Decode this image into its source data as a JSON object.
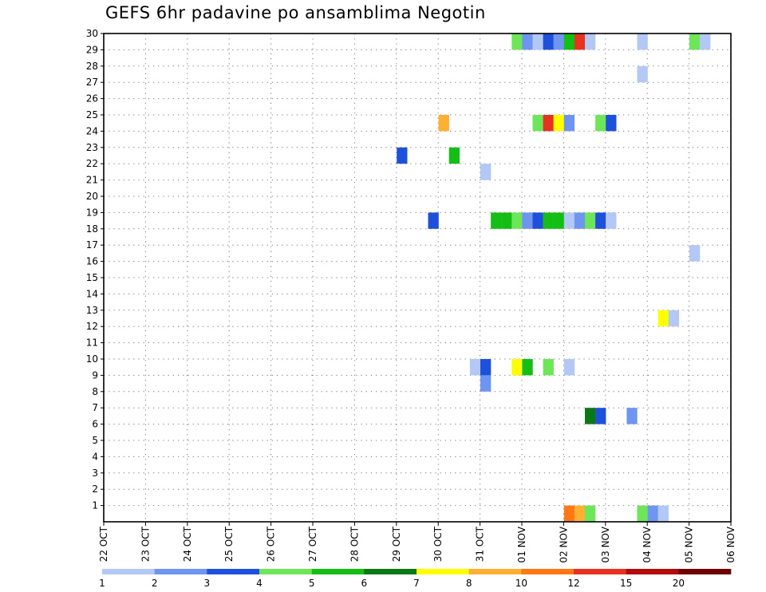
{
  "chart_data": {
    "type": "heatmap",
    "title": "GEFS 6hr padavine po ansamblima Negotin",
    "xlabel": "",
    "ylabel": "",
    "x_tick_labels": [
      "22 OCT",
      "23 OCT",
      "24 OCT",
      "25 OCT",
      "26 OCT",
      "27 OCT",
      "28 OCT",
      "29 OCT",
      "30 OCT",
      "31 OCT",
      "01 NOV",
      "02 NOV",
      "03 NOV",
      "04 NOV",
      "05 NOV",
      "06 NOV"
    ],
    "y_tick_labels": [
      "1",
      "2",
      "3",
      "4",
      "5",
      "6",
      "7",
      "8",
      "9",
      "10",
      "11",
      "12",
      "13",
      "14",
      "15",
      "16",
      "17",
      "18",
      "19",
      "20",
      "21",
      "22",
      "23",
      "24",
      "25",
      "26",
      "27",
      "28",
      "29",
      "30"
    ],
    "x_unit": "6-hour step (0 = 22 OCT 00z)",
    "xlim": [
      0,
      60
    ],
    "ylim": [
      0,
      30
    ],
    "grid": true,
    "colorbar": {
      "labels": [
        "1",
        "2",
        "3",
        "4",
        "5",
        "6",
        "7",
        "8",
        "10",
        "12",
        "15",
        "20"
      ],
      "colors": [
        "#b4c8f5",
        "#6e96f0",
        "#1e50dc",
        "#6ee65a",
        "#14be14",
        "#0a7814",
        "#ffff00",
        "#ffaf32",
        "#ff7814",
        "#e6321e",
        "#b40a0a",
        "#6e0000"
      ]
    },
    "cells": [
      {
        "x": 39,
        "y": 29,
        "c": 3
      },
      {
        "x": 40,
        "y": 29,
        "c": 1
      },
      {
        "x": 41,
        "y": 29,
        "c": 0
      },
      {
        "x": 42,
        "y": 29,
        "c": 2
      },
      {
        "x": 43,
        "y": 29,
        "c": 1
      },
      {
        "x": 44,
        "y": 29,
        "c": 4
      },
      {
        "x": 45,
        "y": 29,
        "c": 9
      },
      {
        "x": 46,
        "y": 29,
        "c": 0
      },
      {
        "x": 51,
        "y": 29,
        "c": 0
      },
      {
        "x": 56,
        "y": 29,
        "c": 3
      },
      {
        "x": 57,
        "y": 29,
        "c": 0
      },
      {
        "x": 51,
        "y": 27,
        "c": 0
      },
      {
        "x": 32,
        "y": 24,
        "c": 7
      },
      {
        "x": 41,
        "y": 24,
        "c": 3
      },
      {
        "x": 42,
        "y": 24,
        "c": 9
      },
      {
        "x": 43,
        "y": 24,
        "c": 6
      },
      {
        "x": 44,
        "y": 24,
        "c": 1
      },
      {
        "x": 47,
        "y": 24,
        "c": 3
      },
      {
        "x": 48,
        "y": 24,
        "c": 2
      },
      {
        "x": 28,
        "y": 22,
        "c": 2
      },
      {
        "x": 33,
        "y": 22,
        "c": 4
      },
      {
        "x": 36,
        "y": 21,
        "c": 0
      },
      {
        "x": 31,
        "y": 18,
        "c": 2
      },
      {
        "x": 37,
        "y": 18,
        "c": 4
      },
      {
        "x": 38,
        "y": 18,
        "c": 4
      },
      {
        "x": 39,
        "y": 18,
        "c": 3
      },
      {
        "x": 40,
        "y": 18,
        "c": 1
      },
      {
        "x": 41,
        "y": 18,
        "c": 2
      },
      {
        "x": 42,
        "y": 18,
        "c": 4
      },
      {
        "x": 43,
        "y": 18,
        "c": 4
      },
      {
        "x": 44,
        "y": 18,
        "c": 0
      },
      {
        "x": 45,
        "y": 18,
        "c": 1
      },
      {
        "x": 46,
        "y": 18,
        "c": 3
      },
      {
        "x": 47,
        "y": 18,
        "c": 2
      },
      {
        "x": 48,
        "y": 18,
        "c": 0
      },
      {
        "x": 56,
        "y": 16,
        "c": 0
      },
      {
        "x": 53,
        "y": 12,
        "c": 6
      },
      {
        "x": 54,
        "y": 12,
        "c": 0
      },
      {
        "x": 35,
        "y": 9,
        "c": 0
      },
      {
        "x": 36,
        "y": 9,
        "c": 2
      },
      {
        "x": 39,
        "y": 9,
        "c": 6
      },
      {
        "x": 40,
        "y": 9,
        "c": 4
      },
      {
        "x": 42,
        "y": 9,
        "c": 3
      },
      {
        "x": 44,
        "y": 9,
        "c": 0
      },
      {
        "x": 36,
        "y": 8,
        "c": 1
      },
      {
        "x": 46,
        "y": 6,
        "c": 5
      },
      {
        "x": 47,
        "y": 6,
        "c": 2
      },
      {
        "x": 50,
        "y": 6,
        "c": 1
      },
      {
        "x": 44,
        "y": 0,
        "c": 8
      },
      {
        "x": 45,
        "y": 0,
        "c": 7
      },
      {
        "x": 46,
        "y": 0,
        "c": 3
      },
      {
        "x": 51,
        "y": 0,
        "c": 3
      },
      {
        "x": 52,
        "y": 0,
        "c": 1
      },
      {
        "x": 53,
        "y": 0,
        "c": 0
      }
    ]
  }
}
